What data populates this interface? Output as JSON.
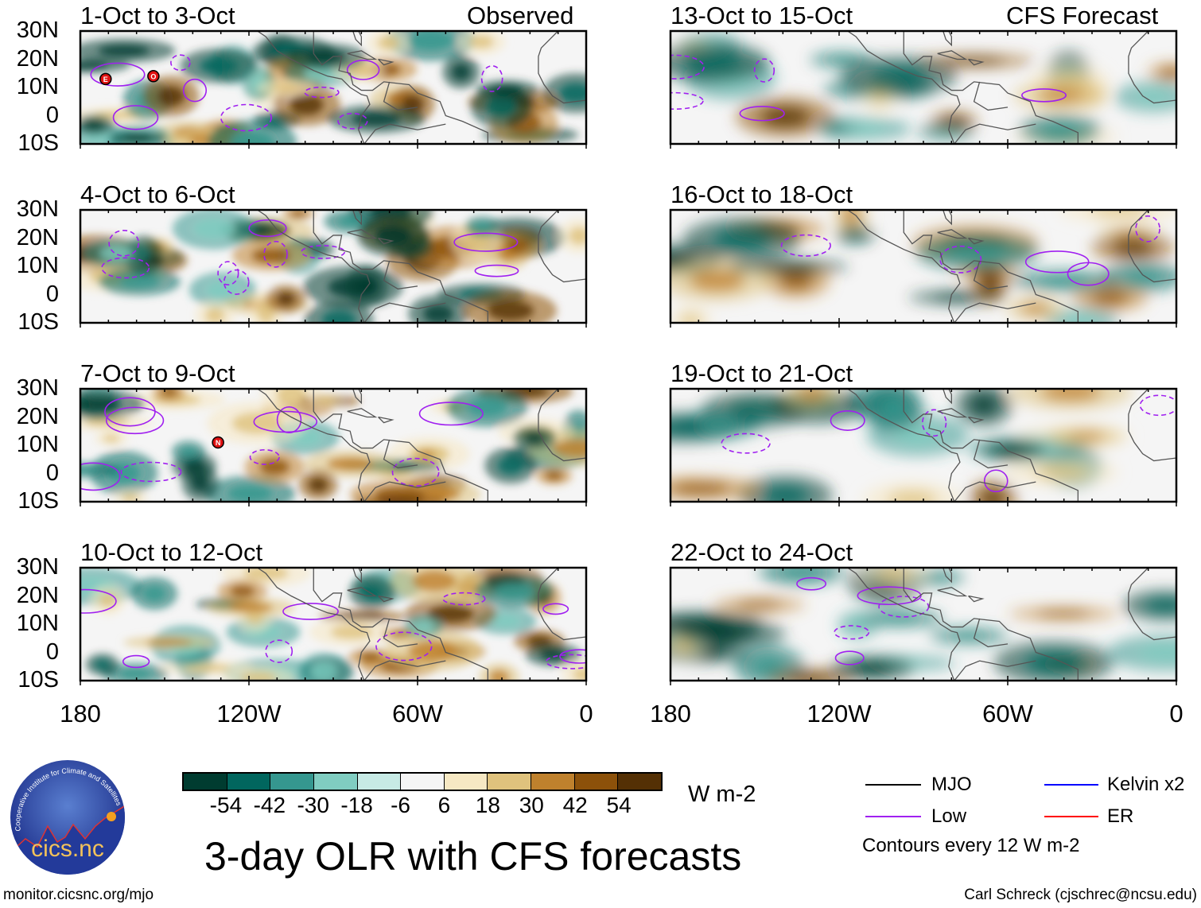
{
  "chart_data": {
    "type": "heatmap",
    "title": "3-day OLR with CFS forecasts",
    "variable": "OLR anomaly",
    "units": "W m-2",
    "column_headers": [
      "Observed",
      "CFS Forecast"
    ],
    "panels": [
      {
        "title": "1-Oct to 3-Oct",
        "kind": "observed",
        "storms": [
          {
            "label": "E",
            "lon": -171,
            "lat": 13
          },
          {
            "label": "O",
            "lon": -154,
            "lat": 14
          }
        ]
      },
      {
        "title": "4-Oct to 6-Oct",
        "kind": "observed",
        "storms": []
      },
      {
        "title": "7-Oct to 9-Oct",
        "kind": "observed",
        "storms": [
          {
            "label": "N",
            "lon": -131,
            "lat": 11
          }
        ]
      },
      {
        "title": "10-Oct to 12-Oct",
        "kind": "observed",
        "storms": []
      },
      {
        "title": "13-Oct to 15-Oct",
        "kind": "forecast",
        "storms": []
      },
      {
        "title": "16-Oct to 18-Oct",
        "kind": "forecast",
        "storms": []
      },
      {
        "title": "19-Oct to 21-Oct",
        "kind": "forecast",
        "storms": []
      },
      {
        "title": "22-Oct to 24-Oct",
        "kind": "forecast",
        "storms": []
      }
    ],
    "lat_ticks": [
      "30N",
      "20N",
      "10N",
      "0",
      "10S"
    ],
    "lat_range": [
      -10,
      30
    ],
    "lon_ticks": [
      "180",
      "120W",
      "60W",
      "0"
    ],
    "lon_range": [
      -180,
      0
    ],
    "colorbar": {
      "levels": [
        "-54",
        "-42",
        "-30",
        "-18",
        "-6",
        "6",
        "18",
        "30",
        "42",
        "54"
      ],
      "colors": [
        "#003c30",
        "#01665e",
        "#35978f",
        "#80cdc1",
        "#c7eae5",
        "#f5f5f5",
        "#f6e8c3",
        "#dfc27d",
        "#bf812d",
        "#8c510a",
        "#543005"
      ],
      "units_label": "W m-2"
    },
    "legend": {
      "items": [
        {
          "label": "MJO",
          "color": "#000000"
        },
        {
          "label": "Kelvin x2",
          "color": "#0000ff"
        },
        {
          "label": "Low",
          "color": "#a020f0"
        },
        {
          "label": "ER",
          "color": "#ff0000"
        }
      ],
      "note": "Contours every 12 W m-2"
    }
  },
  "logo": {
    "text": "cics.nc",
    "ring_text": "Cooperative Institute for Climate and Satellites"
  },
  "footer": {
    "url": "monitor.cicsnc.org/mjo",
    "credit": "Carl Schreck (cjschrec@ncsu.edu)"
  }
}
